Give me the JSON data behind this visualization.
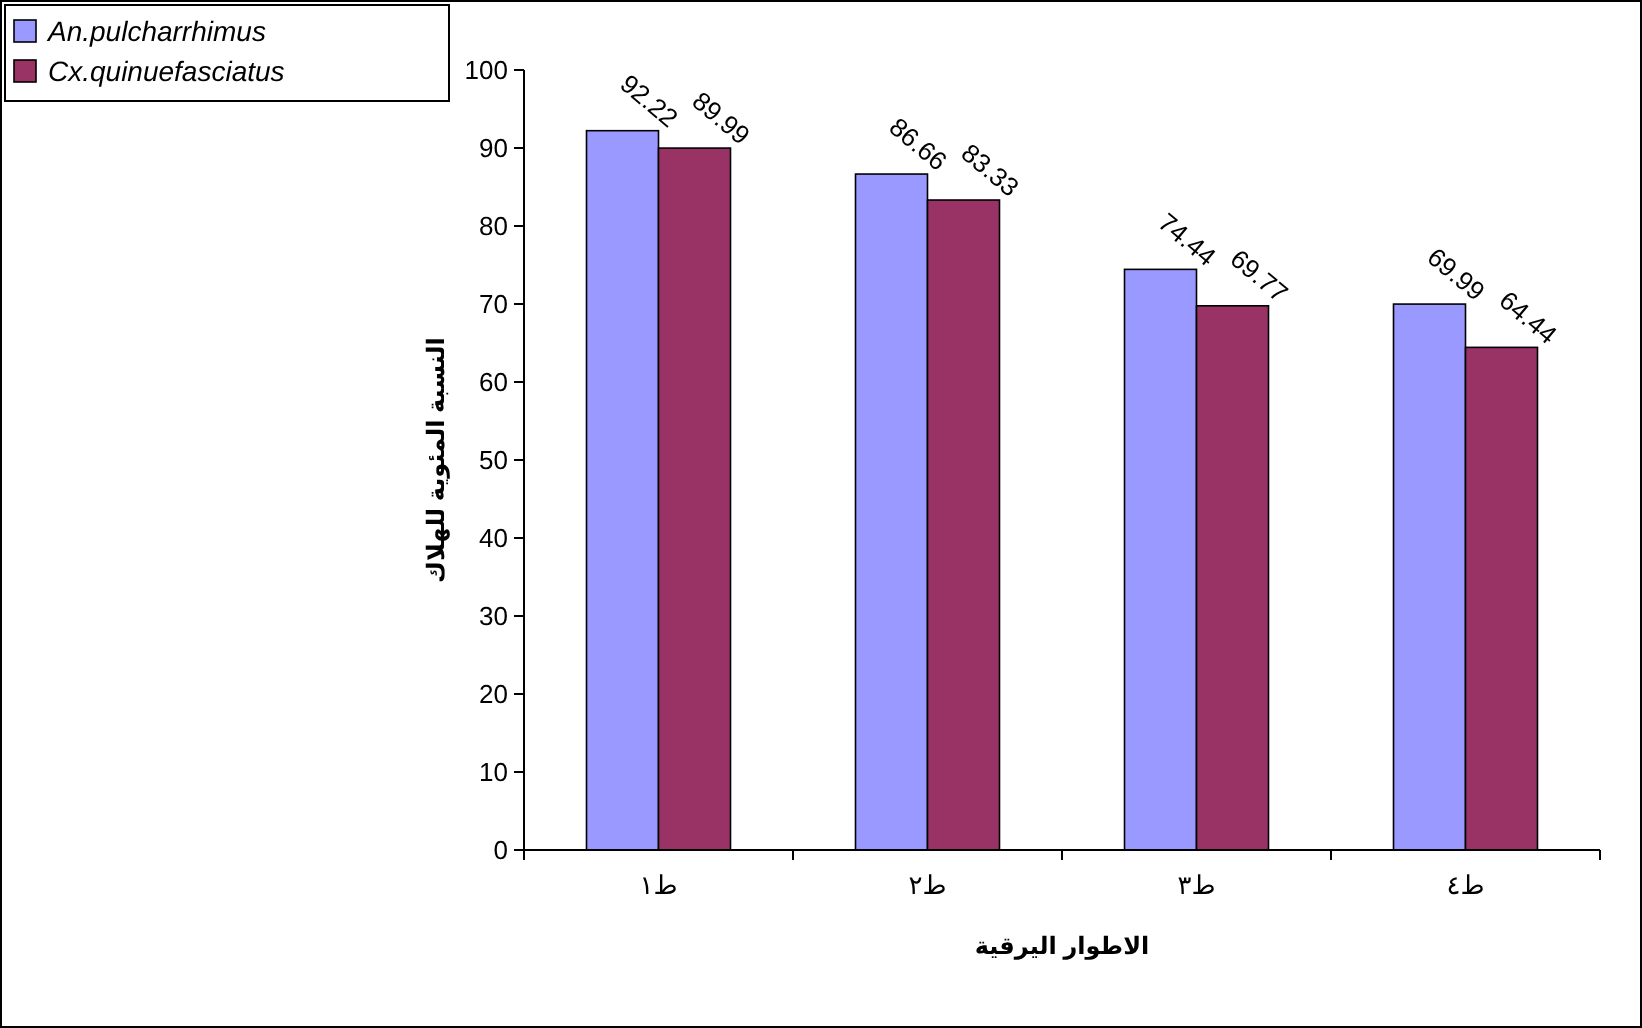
{
  "chart_data": {
    "type": "bar",
    "xlabel": "الاطوار اليرقية",
    "ylabel": "النسبة المئوية للهلاك",
    "categories": [
      "ط١",
      "ط٢",
      "ط٣",
      "ط٤"
    ],
    "series": [
      {
        "name": "An.pulcharrhimus",
        "color": "#9999ff",
        "values": [
          92.22,
          86.66,
          74.44,
          69.99
        ]
      },
      {
        "name": "Cx.quinuefasciatus",
        "color": "#993366",
        "values": [
          89.99,
          83.33,
          69.77,
          64.44
        ]
      }
    ],
    "ylim": [
      0,
      100
    ],
    "yticks": [
      0,
      10,
      20,
      30,
      40,
      50,
      60,
      70,
      80,
      90,
      100
    ],
    "data_labels": true,
    "legend": "top left",
    "grid": false
  }
}
